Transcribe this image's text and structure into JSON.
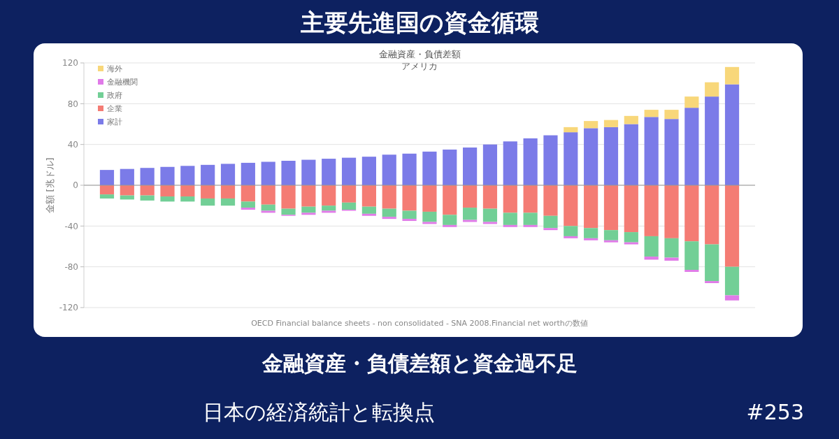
{
  "chart_data": {
    "type": "bar",
    "title": "金融資産・負債差額",
    "subtitle": "アメリカ",
    "ylabel": "金額 [兆ドル]",
    "stacked": true,
    "legend": "top left",
    "grid": "y",
    "tick_labels": "y",
    "categories": [
      null,
      null,
      null,
      null,
      null,
      null,
      null,
      null,
      null,
      null,
      null,
      null,
      null,
      null,
      null,
      null,
      null,
      null,
      null,
      null,
      null,
      null,
      null,
      null,
      null,
      null,
      null,
      null,
      null,
      null,
      null,
      null
    ],
    "ylim": [
      -120,
      120
    ],
    "yticks": [
      -120,
      -80,
      -40,
      0,
      40,
      80,
      120
    ],
    "series": [
      {
        "name": "家計",
        "color": "#7b7be8",
        "values": [
          15,
          16,
          17,
          18,
          19,
          20,
          21,
          22,
          23,
          24,
          25,
          26,
          27,
          28,
          30,
          31,
          33,
          35,
          37,
          40,
          43,
          46,
          49,
          52,
          56,
          57,
          60,
          67,
          65,
          76,
          87,
          99
        ]
      },
      {
        "name": "企業",
        "color": "#f47c74",
        "values": [
          -9,
          -10,
          -10,
          -11,
          -11,
          -13,
          -13,
          -16,
          -19,
          -23,
          -21,
          -20,
          -17,
          -21,
          -23,
          -25,
          -26,
          -29,
          -22,
          -23,
          -27,
          -27,
          -30,
          -40,
          -42,
          -44,
          -46,
          -50,
          -52,
          -55,
          -58,
          -80
        ]
      },
      {
        "name": "政府",
        "color": "#72cf96",
        "values": [
          -4,
          -4,
          -5,
          -5,
          -5,
          -7,
          -7,
          -6,
          -6,
          -6,
          -6,
          -5,
          -7,
          -7,
          -8,
          -8,
          -10,
          -10,
          -12,
          -13,
          -12,
          -12,
          -12,
          -10,
          -10,
          -10,
          -10,
          -20,
          -19,
          -28,
          -36,
          -28
        ]
      },
      {
        "name": "金融機関",
        "color": "#e07ae8",
        "values": [
          null,
          null,
          null,
          null,
          null,
          null,
          null,
          -2,
          -2,
          -1,
          -2,
          -2,
          -1,
          -2,
          -2,
          -2,
          -2,
          -2,
          -2,
          -2,
          -2,
          -2,
          -2,
          -2,
          -2,
          -2,
          -2,
          -3,
          -3,
          -2,
          -2,
          -5
        ]
      },
      {
        "name": "海外",
        "color": "#f8d77a",
        "values": [
          null,
          null,
          null,
          null,
          null,
          null,
          null,
          null,
          null,
          null,
          null,
          null,
          null,
          null,
          null,
          null,
          null,
          null,
          null,
          null,
          null,
          null,
          null,
          5,
          7,
          7,
          8,
          7,
          9,
          11,
          14,
          17
        ]
      }
    ],
    "annotations": [
      "OECD Financial balance sheets - non consolidated - SNA 2008.Financial net worthの数値",
      "主要先進国の資金循環",
      "金融資産・負債差額と資金過不足",
      "日本の経済統計と転換点",
      "#253"
    ]
  }
}
